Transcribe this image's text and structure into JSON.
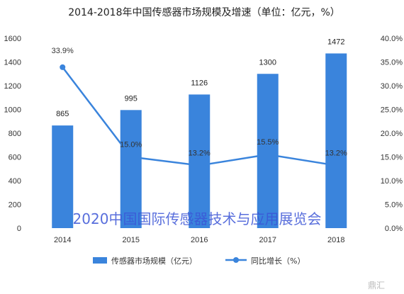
{
  "chart_data": {
    "type": "bar",
    "title": "2014-2018年中国传感器市场规模及增速（单位：亿元，%）",
    "categories": [
      "2014",
      "2015",
      "2016",
      "2017",
      "2018"
    ],
    "series": [
      {
        "name": "传感器市场规模（亿元）",
        "type": "bar",
        "axis": "left",
        "values": [
          865,
          995,
          1126,
          1300,
          1472
        ],
        "labels": [
          "865",
          "995",
          "1126",
          "1300",
          "1472"
        ]
      },
      {
        "name": "同比增长（%）",
        "type": "line",
        "axis": "right",
        "values": [
          33.9,
          15.0,
          13.2,
          15.5,
          13.2
        ],
        "labels": [
          "33.9%",
          "15.0%",
          "13.2%",
          "15.5%",
          "13.2%"
        ]
      }
    ],
    "ylim_left": [
      0,
      1600
    ],
    "ylim_right": [
      0,
      40
    ],
    "yticks_left": [
      "0",
      "200",
      "400",
      "600",
      "800",
      "1000",
      "1200",
      "1400",
      "1600"
    ],
    "yticks_right": [
      "0.0%",
      "5.0%",
      "10.0%",
      "15.0%",
      "20.0%",
      "25.0%",
      "30.0%",
      "35.0%",
      "40.0%"
    ],
    "legend_position": "bottom",
    "grid": false,
    "colors": {
      "bar": "#3a84dc",
      "line": "#3a84dc"
    }
  },
  "watermark": "2020中国国际传感器技术与应用展览会",
  "corner_mark": "鼎汇"
}
